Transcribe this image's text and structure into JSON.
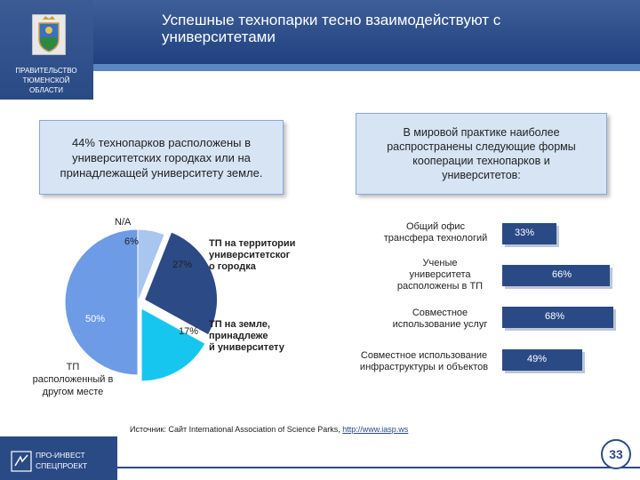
{
  "header": {
    "title": "Успешные технопарки тесно взаимодействуют с\nуниверситетами",
    "gov_label": "ПРАВИТЕЛЬСТВО\nТЮМЕНСКОЙ\nОБЛАСТИ"
  },
  "left_box": {
    "text": "44% технопарков расположены в\nуниверситетских городках или на\nпринадлежащей университету земле."
  },
  "right_box": {
    "text": "В мировой практике наиболее\nраспространены следующие формы\nкооперации технопарков и\nуниверситетов:"
  },
  "chart_data": [
    {
      "type": "pie",
      "slices": [
        {
          "label": "N/A",
          "pct_label": "6%",
          "value": 6,
          "color": "#a9c6ef"
        },
        {
          "label": "ТП на территории университетского городка",
          "pct_label": "27%",
          "value": 27,
          "color": "#2c4a85"
        },
        {
          "label": "ТП на земле, принадлежащей университету",
          "pct_label": "17%",
          "value": 17,
          "color": "#17c6ef"
        },
        {
          "label": "ТП расположенный в другом месте",
          "pct_label": "50%",
          "value": 50,
          "color": "#6d9be6"
        }
      ]
    },
    {
      "type": "bar",
      "orientation": "horizontal",
      "categories": [
        "Общий офис\nтрансфера технологий",
        "Ученые\nуниверситета\nрасположены в ТП",
        "Совместное\nиспользование услуг",
        "Совместное использование\nинфраструктуры и объектов"
      ],
      "values": [
        33,
        66,
        68,
        49
      ],
      "value_labels": [
        "33%",
        "66%",
        "68%",
        "49%"
      ],
      "color": "#2a4a86"
    }
  ],
  "pie_labels": {
    "na": "N/A",
    "campus": "ТП на территории\nуниверситетског\nо городка",
    "univ_land": "ТП на земле,\nпринадлеже\nй университету",
    "other": "ТП\nрасположенный в\nдругом месте"
  },
  "footer": {
    "logo_text": "ПРО-ИНВЕСТ\nСПЕЦПРОЕКТ",
    "source_prefix": "Источник: Сайт International Association of Science Parks, ",
    "source_link": "http://www.iasp.ws",
    "page_number": "33"
  }
}
